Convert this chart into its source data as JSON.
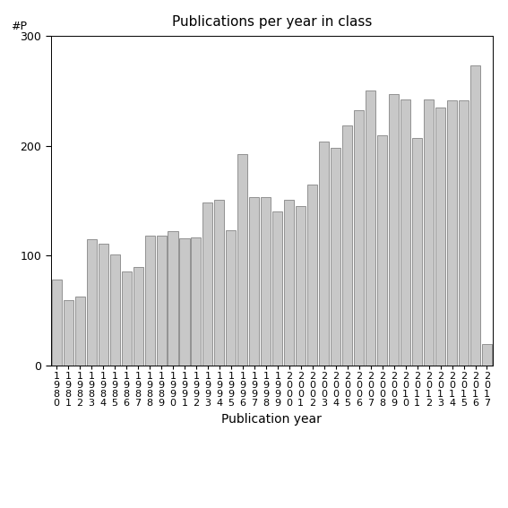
{
  "title": "Publications per year in class",
  "xlabel": "Publication year",
  "ylabel": "#P",
  "bar_color": "#c8c8c8",
  "bar_edgecolor": "#555555",
  "ylim": [
    0,
    300
  ],
  "yticks": [
    0,
    100,
    200,
    300
  ],
  "years": [
    "1980",
    "1981",
    "1982",
    "1983",
    "1984",
    "1985",
    "1986",
    "1987",
    "1988",
    "1989",
    "1990",
    "1991",
    "1992",
    "1993",
    "1994",
    "1995",
    "1996",
    "1997",
    "1998",
    "1999",
    "2000",
    "2001",
    "2002",
    "2003",
    "2004",
    "2005",
    "2006",
    "2007",
    "2008",
    "2009",
    "2010",
    "2011",
    "2012",
    "2013",
    "2014",
    "2015",
    "2016",
    "2017"
  ],
  "values": [
    78,
    60,
    63,
    115,
    111,
    101,
    86,
    90,
    118,
    118,
    122,
    116,
    117,
    148,
    151,
    123,
    192,
    153,
    153,
    140,
    151,
    145,
    165,
    204,
    198,
    218,
    232,
    250,
    209,
    247,
    242,
    207,
    242,
    235,
    241,
    241,
    273,
    20
  ],
  "tick_label_fontsize": 8,
  "axis_label_fontsize": 10,
  "title_fontsize": 11,
  "background_color": "#ffffff",
  "bar_linewidth": 0.4
}
